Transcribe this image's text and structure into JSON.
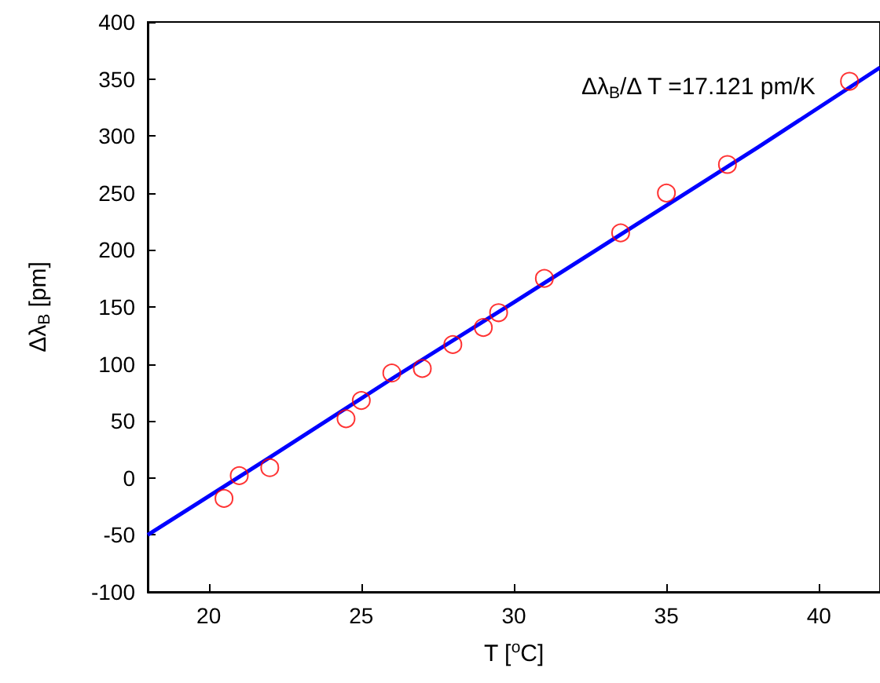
{
  "chart_data": {
    "type": "scatter",
    "xlabel": "T [$^{o}$C]",
    "ylabel": "Δλ$_{B}$ [pm]",
    "annotations": [
      "Δλ$_{B}$/Δ T =17.121 pm/K"
    ],
    "xlim": [
      18,
      42
    ],
    "xticks": [
      20,
      25,
      30,
      35,
      40
    ],
    "ylim": [
      -100,
      400
    ],
    "yticks": [
      -100,
      -50,
      0,
      50,
      100,
      150,
      200,
      250,
      300,
      350,
      400
    ],
    "series": [
      {
        "marker": "circle",
        "color": "#ff0000",
        "x": [
          20.5,
          21,
          22,
          24.5,
          25,
          26,
          27,
          28,
          29,
          29.5,
          31,
          33.5,
          35,
          37,
          41
        ],
        "values": [
          -18,
          2,
          9,
          52,
          68,
          92,
          96,
          117,
          132,
          145,
          175,
          215,
          250,
          275,
          348
        ]
      },
      {
        "type": "line",
        "marker": "none",
        "line_style": "solid",
        "color": "#0000ff",
        "x": [
          18,
          22,
          26,
          30,
          34,
          38,
          42
        ],
        "values": [
          -50,
          18,
          87,
          154,
          222,
          290,
          360
        ]
      }
    ]
  }
}
